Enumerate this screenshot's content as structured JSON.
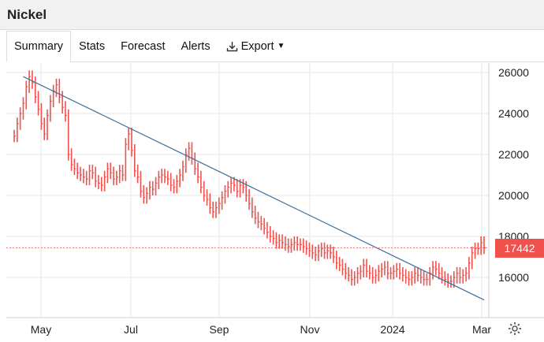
{
  "header": {
    "title": "Nickel"
  },
  "tabs": [
    {
      "label": "Summary",
      "active": true
    },
    {
      "label": "Stats"
    },
    {
      "label": "Forecast"
    },
    {
      "label": "Alerts"
    },
    {
      "label": "Export"
    }
  ],
  "colors": {
    "candle": "#f0514d",
    "trendline": "#3b6f9a",
    "grid": "#e6e6e6",
    "badge": "#f0514d"
  },
  "icons": {
    "export": "download-icon",
    "caret": "caret-down-icon",
    "settings": "gear-icon"
  },
  "chart_data": {
    "type": "line",
    "title": "",
    "xlabel": "",
    "ylabel": "",
    "x_ticks": [
      "May",
      "Jul",
      "Sep",
      "Nov",
      "2024",
      "Mar"
    ],
    "y_ticks": [
      "26000",
      "24000",
      "22000",
      "20000",
      "18000",
      "16000"
    ],
    "ylim": [
      14900,
      26500
    ],
    "current_price": {
      "value": 17442,
      "label": "17442"
    },
    "grid": true,
    "series": [
      {
        "values": [
          22900,
          23500,
          24000,
          24500,
          25300,
          25800,
          25500,
          24800,
          24200,
          23500,
          23000,
          23900,
          24600,
          25100,
          25400,
          24800,
          24300,
          23900,
          22000,
          21500,
          21300,
          21100,
          21000,
          20900,
          20800,
          21200,
          21100,
          20700,
          20600,
          20500,
          20900,
          21300,
          21100,
          20800,
          20900,
          21200,
          21000,
          22500,
          23000,
          22200,
          21200,
          20900,
          20200,
          19900,
          20100,
          20400,
          20300,
          20600,
          20900,
          21000,
          20900,
          20800,
          20500,
          20400,
          20700,
          21000,
          21400,
          22000,
          22300,
          21800,
          21300,
          20900,
          20400,
          20000,
          19800,
          19400,
          19200,
          19400,
          19600,
          19900,
          20200,
          20400,
          20600,
          20500,
          20200,
          20500,
          20400,
          20000,
          19600,
          19200,
          18900,
          18700,
          18600,
          18400,
          18200,
          18000,
          17900,
          17700,
          17800,
          17700,
          17600,
          17500,
          17600,
          17700,
          17600,
          17600,
          17500,
          17400,
          17300,
          17200,
          17100,
          17300,
          17400,
          17200,
          17300,
          17200,
          17000,
          16700,
          16600,
          16400,
          16200,
          16100,
          15900,
          16000,
          16200,
          16300,
          16600,
          16300,
          16200,
          16000,
          16100,
          16300,
          16400,
          16500,
          16200,
          16200,
          16300,
          16400,
          16200,
          16100,
          16000,
          15900,
          16000,
          16200,
          16100,
          16000,
          15900,
          15900,
          16200,
          16500,
          16400,
          16200,
          16000,
          15900,
          15800,
          15800,
          16000,
          16200,
          16000,
          16100,
          16200,
          16700,
          17200,
          17400,
          17400,
          17700,
          17442
        ]
      }
    ],
    "trendline": {
      "start": {
        "index": 3,
        "value": 25800
      },
      "end": {
        "index": 156,
        "value": 14900
      }
    }
  }
}
